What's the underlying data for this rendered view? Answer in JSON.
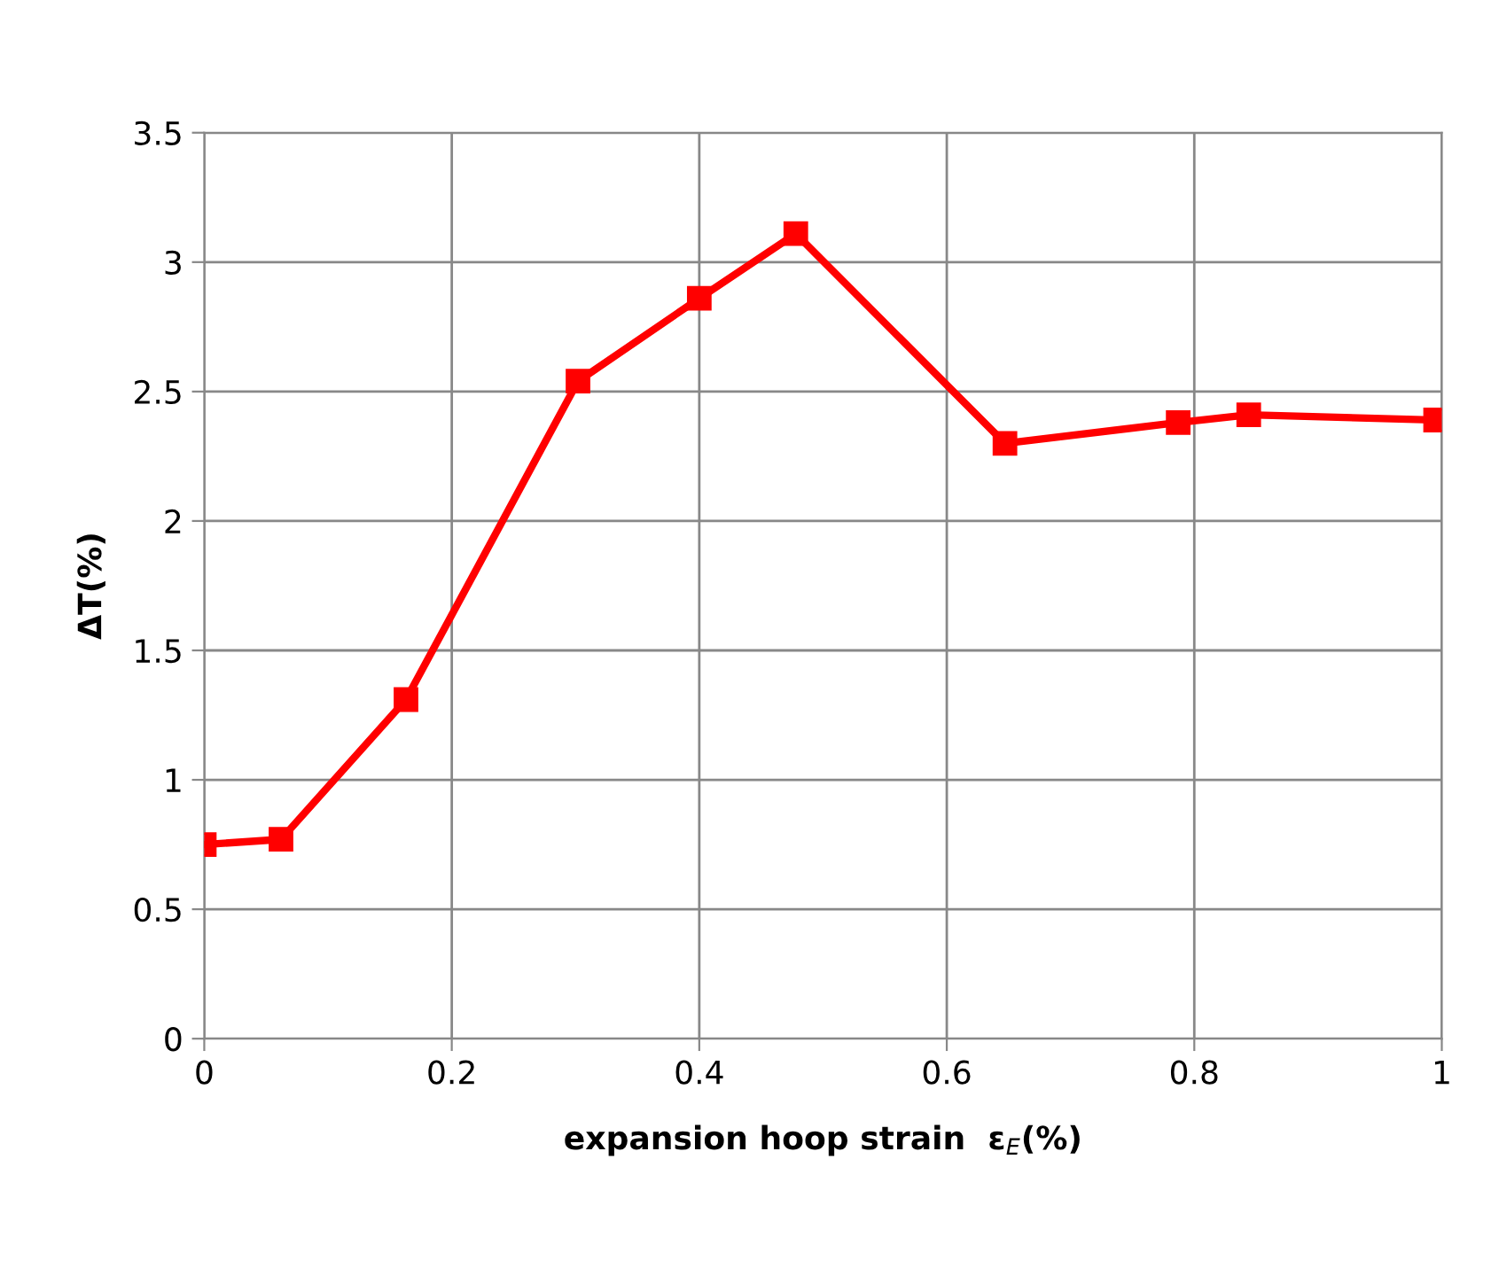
{
  "chart_data": {
    "type": "line",
    "xlabel": "expansion hoop strain  ε$_{E}$(%)",
    "ylabel": "ΔT(%)",
    "series": [
      {
        "color": "#ff0000",
        "x": [
          0.0,
          0.062,
          0.163,
          0.302,
          0.4,
          0.478,
          0.647,
          0.787,
          0.844,
          0.995
        ],
        "values": [
          0.75,
          0.77,
          1.31,
          2.54,
          2.86,
          3.11,
          2.3,
          2.38,
          2.41,
          2.39
        ]
      }
    ],
    "xlim": [
      0,
      1
    ],
    "xticks": [
      0,
      0.2,
      0.4,
      0.6,
      0.8,
      1
    ],
    "ylim": [
      0,
      3.5
    ],
    "yticks": [
      0,
      0.5,
      1,
      1.5,
      2,
      2.5,
      3,
      3.5
    ],
    "grid": true,
    "marker": "square",
    "line_style": "solid"
  }
}
